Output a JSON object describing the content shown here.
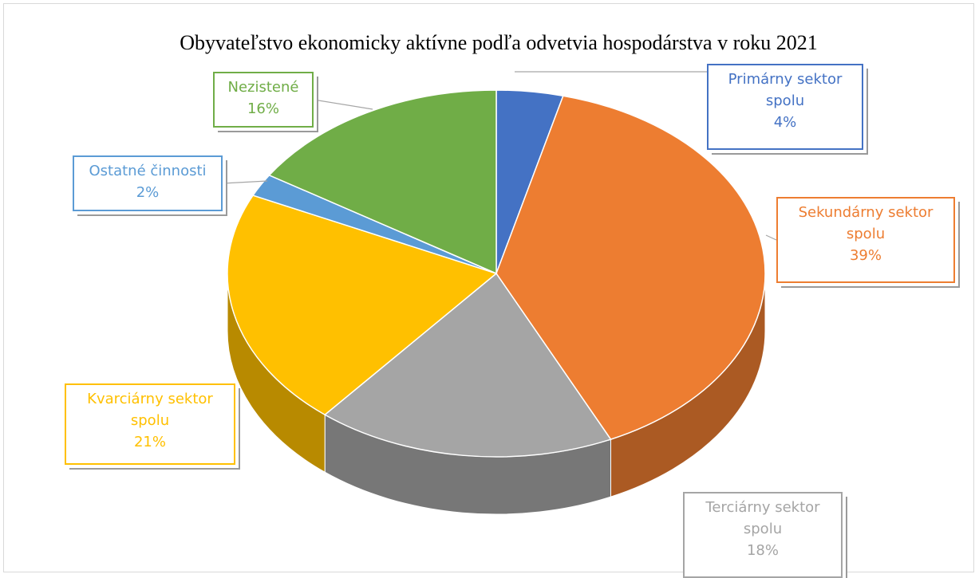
{
  "chart_data": {
    "type": "pie",
    "title": "Obyvateľstvo ekonomicky aktívne podľa odvetvia hospodárstva v roku 2021",
    "slices": [
      {
        "label": "Primárny sektor spolu",
        "pct_label": "4%",
        "value": 4,
        "color": "#4472c4"
      },
      {
        "label": "Sekundárny sektor spolu",
        "pct_label": "39%",
        "value": 39,
        "color": "#ed7d31"
      },
      {
        "label": "Terciárny sektor spolu",
        "pct_label": "18%",
        "value": 18,
        "color": "#a5a5a5"
      },
      {
        "label": "Kvarciárny sektor spolu",
        "pct_label": "21%",
        "value": 21,
        "color": "#ffc000"
      },
      {
        "label": "Ostatné činnosti",
        "pct_label": "2%",
        "value": 2,
        "color": "#5b9bd5"
      },
      {
        "label": "Nezistené",
        "pct_label": "16%",
        "value": 16,
        "color": "#70ad47"
      }
    ],
    "legend": "none",
    "style": "3d-pie-with-data-callouts"
  }
}
